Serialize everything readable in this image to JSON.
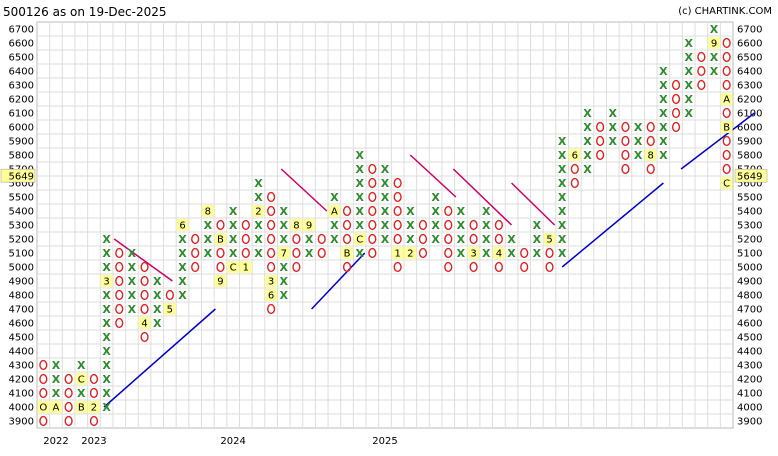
{
  "header": {
    "title": "500126 as on 19-Dec-2025",
    "credit": "(c) CHARTINK.COM"
  },
  "colors": {
    "x_mark": "#2e8b2e",
    "o_mark": "#e02020",
    "month_label_bg": "#ffff99",
    "trendline_support": "#0000cc",
    "trendline_resistance": "#cc0066",
    "grid": "#dddddd",
    "price_badge_bg": "#ffff99"
  },
  "chart_data": {
    "type": "point-and-figure",
    "box_size": 100,
    "reversal": 3,
    "ylim": [
      3900,
      6700
    ],
    "yticks": [
      3900,
      4000,
      4100,
      4200,
      4300,
      4400,
      4500,
      4600,
      4700,
      4800,
      4900,
      5000,
      5100,
      5200,
      5300,
      5400,
      5500,
      5600,
      5700,
      5800,
      5900,
      6000,
      6100,
      6200,
      6300,
      6400,
      6500,
      6600,
      6700
    ],
    "current_price": "5649",
    "year_labels": [
      {
        "label": "2022",
        "column": 1
      },
      {
        "label": "2023",
        "column": 4
      },
      {
        "label": "2024",
        "column": 15
      },
      {
        "label": "2025",
        "column": 27
      }
    ],
    "columns": [
      {
        "type": "O",
        "low": 3900,
        "high": 4300,
        "marks": {
          "4000": "O"
        }
      },
      {
        "type": "X",
        "low": 4000,
        "high": 4300,
        "marks": {
          "4000": "A"
        }
      },
      {
        "type": "O",
        "low": 3900,
        "high": 4200
      },
      {
        "type": "X",
        "low": 4000,
        "high": 4300,
        "marks": {
          "4000": "B",
          "4200": "C"
        }
      },
      {
        "type": "O",
        "low": 3900,
        "high": 4200,
        "marks": {
          "4000": "2"
        }
      },
      {
        "type": "X",
        "low": 4000,
        "high": 5200,
        "marks": {
          "4900": "3"
        }
      },
      {
        "type": "O",
        "low": 4600,
        "high": 5100
      },
      {
        "type": "X",
        "low": 4700,
        "high": 5100
      },
      {
        "type": "O",
        "low": 4500,
        "high": 5000,
        "marks": {
          "4600": "4"
        }
      },
      {
        "type": "X",
        "low": 4600,
        "high": 4900
      },
      {
        "type": "O",
        "low": 4700,
        "high": 4800,
        "marks": {
          "4700": "5"
        }
      },
      {
        "type": "X",
        "low": 4800,
        "high": 5300,
        "marks": {
          "5300": "6"
        }
      },
      {
        "type": "O",
        "low": 5000,
        "high": 5200
      },
      {
        "type": "X",
        "low": 5100,
        "high": 5400,
        "marks": {
          "5400": "8"
        }
      },
      {
        "type": "O",
        "low": 4900,
        "high": 5300,
        "marks": {
          "5200": "B",
          "4900": "9"
        }
      },
      {
        "type": "X",
        "low": 5000,
        "high": 5400,
        "marks": {
          "5000": "C"
        }
      },
      {
        "type": "O",
        "low": 5000,
        "high": 5300,
        "marks": {
          "5000": "1"
        }
      },
      {
        "type": "X",
        "low": 5100,
        "high": 5600,
        "marks": {
          "5400": "2"
        }
      },
      {
        "type": "O",
        "low": 4700,
        "high": 5500,
        "marks": {
          "4900": "3",
          "4800": "6"
        }
      },
      {
        "type": "X",
        "low": 4800,
        "high": 5400,
        "marks": {
          "5100": "7"
        }
      },
      {
        "type": "O",
        "low": 5000,
        "high": 5300,
        "marks": {
          "5300": "8"
        }
      },
      {
        "type": "X",
        "low": 5100,
        "high": 5300,
        "marks": {
          "5300": "9"
        }
      },
      {
        "type": "O",
        "low": 5100,
        "high": 5200
      },
      {
        "type": "X",
        "low": 5200,
        "high": 5500,
        "marks": {
          "5400": "A"
        }
      },
      {
        "type": "O",
        "low": 5000,
        "high": 5400,
        "marks": {
          "5100": "B"
        }
      },
      {
        "type": "X",
        "low": 5100,
        "high": 5800,
        "marks": {
          "5200": "C"
        }
      },
      {
        "type": "O",
        "low": 5100,
        "high": 5700
      },
      {
        "type": "X",
        "low": 5200,
        "high": 5700
      },
      {
        "type": "O",
        "low": 5000,
        "high": 5600,
        "marks": {
          "5100": "1"
        }
      },
      {
        "type": "X",
        "low": 5100,
        "high": 5400,
        "marks": {
          "5100": "2"
        }
      },
      {
        "type": "O",
        "low": 5100,
        "high": 5300
      },
      {
        "type": "X",
        "low": 5200,
        "high": 5500
      },
      {
        "type": "O",
        "low": 5000,
        "high": 5400
      },
      {
        "type": "X",
        "low": 5100,
        "high": 5400
      },
      {
        "type": "O",
        "low": 5000,
        "high": 5300,
        "marks": {
          "5100": "3"
        }
      },
      {
        "type": "X",
        "low": 5100,
        "high": 5400
      },
      {
        "type": "O",
        "low": 5000,
        "high": 5300,
        "marks": {
          "5100": "4"
        }
      },
      {
        "type": "X",
        "low": 5100,
        "high": 5200
      },
      {
        "type": "O",
        "low": 5000,
        "high": 5100
      },
      {
        "type": "X",
        "low": 5100,
        "high": 5300
      },
      {
        "type": "O",
        "low": 5000,
        "high": 5200,
        "marks": {
          "5200": "5"
        }
      },
      {
        "type": "X",
        "low": 5100,
        "high": 5900
      },
      {
        "type": "O",
        "low": 5600,
        "high": 5800,
        "marks": {
          "5800": "6"
        }
      },
      {
        "type": "X",
        "low": 5700,
        "high": 6100
      },
      {
        "type": "O",
        "low": 5800,
        "high": 6000,
        "marks": {
          "5700": "7"
        }
      },
      {
        "type": "X",
        "low": 5900,
        "high": 6100
      },
      {
        "type": "O",
        "low": 5700,
        "high": 6000
      },
      {
        "type": "X",
        "low": 5800,
        "high": 6000
      },
      {
        "type": "O",
        "low": 5700,
        "high": 6000,
        "marks": {
          "5800": "8"
        }
      },
      {
        "type": "X",
        "low": 5800,
        "high": 6400
      },
      {
        "type": "O",
        "low": 6000,
        "high": 6300
      },
      {
        "type": "X",
        "low": 6100,
        "high": 6600
      },
      {
        "type": "O",
        "low": 6300,
        "high": 6500
      },
      {
        "type": "X",
        "low": 6400,
        "high": 6700,
        "marks": {
          "6600": "9"
        }
      },
      {
        "type": "O",
        "low": 5600,
        "high": 6600,
        "marks": {
          "6200": "A",
          "6000": "B",
          "5600": "C"
        }
      }
    ],
    "trendlines": [
      {
        "kind": "support",
        "from": {
          "column": 4.8,
          "price": 4000
        },
        "to": {
          "column": 13.6,
          "price": 4700
        }
      },
      {
        "kind": "resistance",
        "from": {
          "column": 5.6,
          "price": 5200
        },
        "to": {
          "column": 10.2,
          "price": 4900
        }
      },
      {
        "kind": "resistance",
        "from": {
          "column": 18.8,
          "price": 5700
        },
        "to": {
          "column": 22.4,
          "price": 5400
        }
      },
      {
        "kind": "support",
        "from": {
          "column": 21.2,
          "price": 4700
        },
        "to": {
          "column": 25.4,
          "price": 5100
        }
      },
      {
        "kind": "resistance",
        "from": {
          "column": 29.0,
          "price": 5800
        },
        "to": {
          "column": 32.6,
          "price": 5500
        }
      },
      {
        "kind": "resistance",
        "from": {
          "column": 32.4,
          "price": 5700
        },
        "to": {
          "column": 37.0,
          "price": 5300
        }
      },
      {
        "kind": "resistance",
        "from": {
          "column": 37.0,
          "price": 5600
        },
        "to": {
          "column": 40.4,
          "price": 5300
        }
      },
      {
        "kind": "support",
        "from": {
          "column": 41.0,
          "price": 5000
        },
        "to": {
          "column": 49.0,
          "price": 5600
        }
      },
      {
        "kind": "support",
        "from": {
          "column": 50.4,
          "price": 5700
        },
        "to": {
          "column": 56.2,
          "price": 6100
        }
      }
    ]
  }
}
